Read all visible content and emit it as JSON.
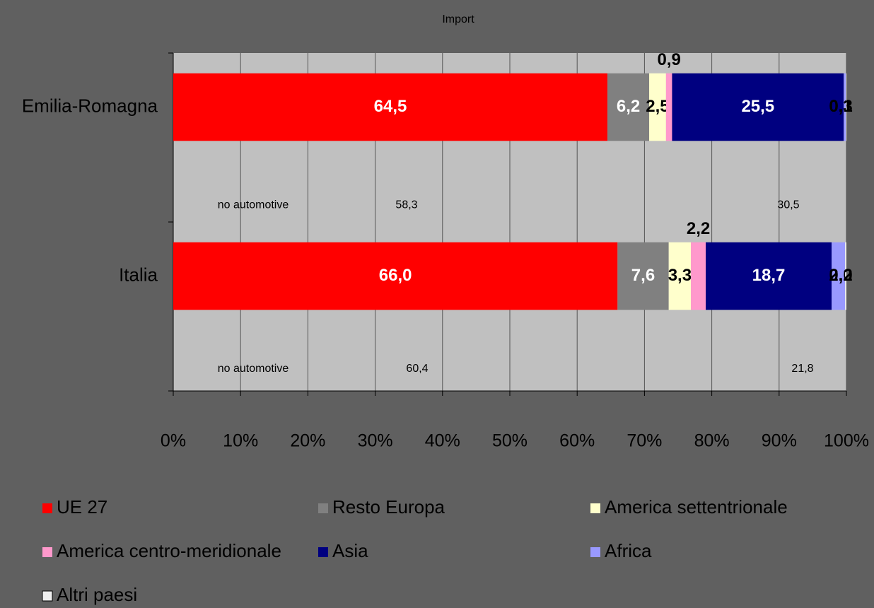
{
  "chart_data": {
    "type": "stacked_bar_horizontal",
    "title": "Import",
    "categories": [
      "Emilia-Romagna",
      "Italia"
    ],
    "series": [
      {
        "name": "UE 27",
        "color": "#ff0000",
        "values": [
          64.5,
          66.0
        ],
        "value_labels": [
          "64,5",
          "66,0"
        ]
      },
      {
        "name": "Resto Europa",
        "color": "#808080",
        "values": [
          6.2,
          7.6
        ],
        "value_labels": [
          "6,2",
          "7,6"
        ]
      },
      {
        "name": "America settentrionale",
        "color": "#ffffcc",
        "values": [
          2.5,
          3.3
        ],
        "value_labels": [
          "2,5",
          "3,3"
        ]
      },
      {
        "name": "America centro-meridionale",
        "color": "#ff99cc",
        "values": [
          0.9,
          2.2
        ],
        "value_labels": [
          "0,9",
          "2,2"
        ]
      },
      {
        "name": "Asia",
        "color": "#000080",
        "values": [
          25.5,
          18.7
        ],
        "value_labels": [
          "25,5",
          "18,7"
        ]
      },
      {
        "name": "Africa",
        "color": "#9999ff",
        "values": [
          0.3,
          2.0
        ],
        "value_labels": [
          "0,3",
          "2,0"
        ]
      },
      {
        "name": "Altri paesi",
        "color": "#eeeeee",
        "values": [
          0.1,
          0.2
        ],
        "value_labels": [
          "0,1",
          "0,2"
        ]
      }
    ],
    "annotations": [
      [
        "no automotive",
        "58,3",
        "30,5"
      ],
      [
        "no automotive",
        "60,4",
        "21,8"
      ]
    ],
    "xlim": [
      0,
      100
    ],
    "xticks": [
      {
        "value": 0,
        "label": "0%"
      },
      {
        "value": 10,
        "label": "10%"
      },
      {
        "value": 20,
        "label": "20%"
      },
      {
        "value": 30,
        "label": "30%"
      },
      {
        "value": 40,
        "label": "40%"
      },
      {
        "value": 50,
        "label": "50%"
      },
      {
        "value": 60,
        "label": "60%"
      },
      {
        "value": 70,
        "label": "70%"
      },
      {
        "value": 80,
        "label": "80%"
      },
      {
        "value": 90,
        "label": "90%"
      },
      {
        "value": 100,
        "label": "100%"
      }
    ],
    "grid": true
  }
}
